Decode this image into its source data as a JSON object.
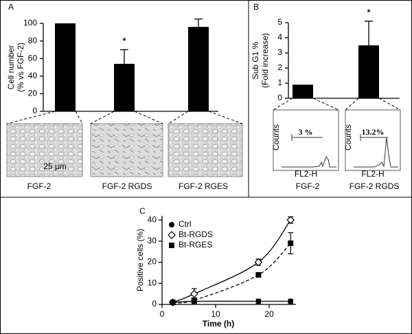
{
  "chart_data": [
    {
      "type": "bar",
      "panel": "A",
      "ylabel": "Cell number\n(% vs FGF-2)",
      "categories": [
        "FGF-2",
        "FGF-2  RGDS",
        "FGF-2  RGES"
      ],
      "values": [
        100,
        54,
        96
      ],
      "errors": [
        0,
        16,
        9
      ],
      "color": "#000000",
      "annotation": "*",
      "scale_bar": "25 µm",
      "ylim": [
        0,
        100
      ],
      "yticks": [
        0,
        20,
        40,
        60,
        80,
        100
      ]
    },
    {
      "type": "bar",
      "panel": "B",
      "ylabel": "Sub G1 %\n(Fold increase)",
      "categories": [
        "FGF-2",
        "FGF-2  RGDS"
      ],
      "values": [
        0.9,
        3.5
      ],
      "errors": [
        0,
        1.6
      ],
      "color": "#000000",
      "annotation": "*",
      "inset_labels": [
        "3 %",
        "13.2%"
      ],
      "inset_axis_labels": {
        "x": "FL2-H",
        "y": "Counts"
      },
      "ylim": [
        0,
        5
      ],
      "yticks": [
        0,
        1,
        2,
        3,
        4,
        5
      ]
    },
    {
      "type": "line",
      "panel": "C",
      "xlabel": "Time (h)",
      "ylabel": "Positive cells (%)",
      "x": [
        2,
        6,
        18,
        24
      ],
      "series": [
        {
          "name": "Ctrl",
          "color": "#000000",
          "marker": "circle",
          "line_style": "solid",
          "values": [
            1,
            1.5,
            1.5,
            1.5
          ],
          "errors": [
            1,
            1,
            1,
            1
          ]
        },
        {
          "name": "Bt-RGDS",
          "color": "#000000",
          "marker": "diamond",
          "line_style": "solid",
          "values": [
            1,
            5,
            20,
            40
          ],
          "errors": [
            1,
            2.5,
            1.5,
            1.5
          ]
        },
        {
          "name": "Bt-RGES",
          "color": "#000000",
          "marker": "square",
          "line_style": "dashed",
          "values": [
            1,
            2,
            14,
            29
          ],
          "errors": [
            1,
            1,
            1,
            5
          ]
        }
      ],
      "xlim": [
        0,
        25
      ],
      "xticks": [
        0,
        10,
        20
      ],
      "ylim": [
        0,
        42
      ],
      "yticks": [
        0,
        10,
        20,
        30,
        40
      ]
    }
  ]
}
